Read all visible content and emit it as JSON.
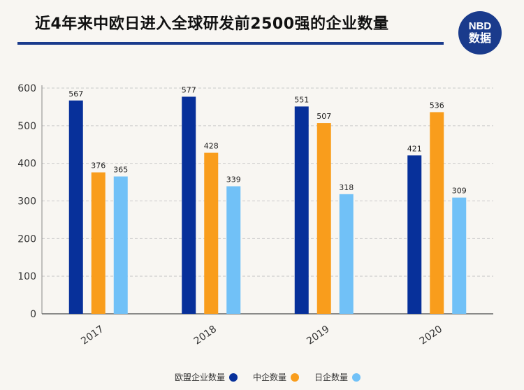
{
  "title": "近4年来中欧日进入全球研发前2500强的企业数量",
  "logo": {
    "line1": "NBD",
    "line2": "数据"
  },
  "chart_data": {
    "type": "bar",
    "categories": [
      "2017",
      "2018",
      "2019",
      "2020"
    ],
    "series": [
      {
        "name": "欧盟企业数量",
        "color": "#07309a",
        "values": [
          567,
          577,
          551,
          421
        ]
      },
      {
        "name": "中企数量",
        "color": "#f99d1c",
        "values": [
          376,
          428,
          507,
          536
        ]
      },
      {
        "name": "日企数量",
        "color": "#71c1f7",
        "values": [
          365,
          339,
          318,
          309
        ]
      }
    ],
    "ylim": [
      0,
      600
    ],
    "yticks": [
      0,
      100,
      200,
      300,
      400,
      500,
      600
    ],
    "grid": true,
    "legend": "bottom"
  }
}
